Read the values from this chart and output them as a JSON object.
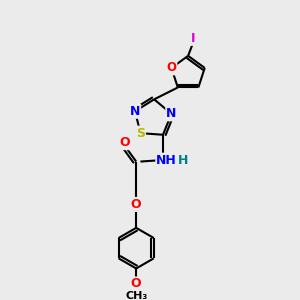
{
  "bg_color": "#ebebeb",
  "line_color": "#000000",
  "lw": 1.5,
  "atoms": {
    "I": {
      "color": "#dd00dd"
    },
    "O": {
      "color": "#ff0000"
    },
    "N": {
      "color": "#0000ff"
    },
    "S": {
      "color": "#b8b800"
    },
    "NH": {
      "color": "#0000ff"
    },
    "H": {
      "color": "#008080"
    }
  },
  "font_size": 8.5,
  "figsize": [
    3.0,
    3.0
  ],
  "dpi": 100,
  "xlim": [
    0,
    10
  ],
  "ylim": [
    0,
    10
  ]
}
